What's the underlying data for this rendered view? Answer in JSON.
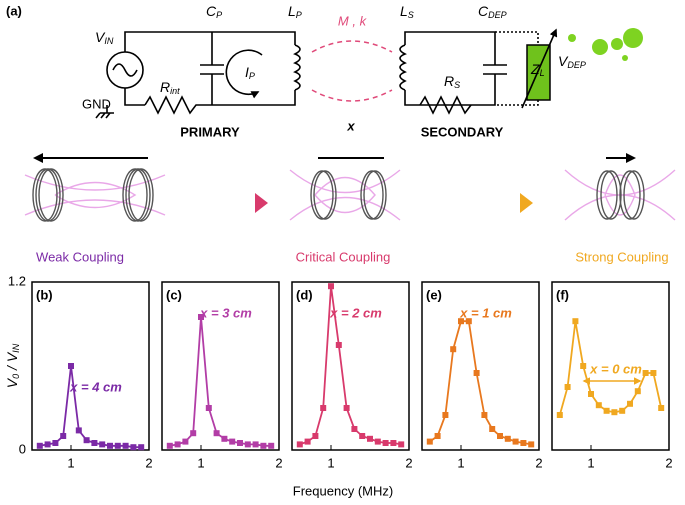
{
  "panel_label": "(a)",
  "circuit": {
    "v_in": [
      "V",
      "IN"
    ],
    "c_p": [
      "C",
      "P"
    ],
    "l_p": [
      "L",
      "P"
    ],
    "m_k": "M , k",
    "l_s": [
      "L",
      "S"
    ],
    "c_dep": [
      "C",
      "DEP"
    ],
    "i_p": [
      "I",
      "P"
    ],
    "r_int": [
      "R",
      "int"
    ],
    "gnd": "GND",
    "r_s": [
      "R",
      "S"
    ],
    "z_l": [
      "Z",
      "L"
    ],
    "v_dep": [
      "V",
      "DEP"
    ],
    "primary": "PRIMARY",
    "x": "x",
    "secondary": "SECONDARY"
  },
  "coupling": [
    "Weak Coupling",
    "Critical Coupling",
    "Strong Coupling"
  ],
  "y_label": [
    "V",
    "0",
    " / V",
    "IN"
  ],
  "x_label": "Frequency (MHz)",
  "chart_data": [
    {
      "type": "line",
      "panel": "(b)",
      "annotation": "x = 4 cm",
      "color": "#7b2aa6",
      "x": [
        0.6,
        0.7,
        0.8,
        0.9,
        1.0,
        1.1,
        1.2,
        1.3,
        1.4,
        1.5,
        1.6,
        1.7,
        1.8,
        1.9
      ],
      "values": [
        0.03,
        0.04,
        0.05,
        0.1,
        0.6,
        0.14,
        0.07,
        0.05,
        0.04,
        0.03,
        0.03,
        0.03,
        0.02,
        0.02
      ],
      "xlim": [
        0.5,
        2
      ],
      "xticks": [
        1,
        2
      ],
      "ylim": [
        0,
        1.2
      ],
      "yticks": [
        0,
        1.2
      ]
    },
    {
      "type": "line",
      "panel": "(c)",
      "annotation": "x = 3 cm",
      "color": "#b23da6",
      "x": [
        0.6,
        0.7,
        0.8,
        0.9,
        1.0,
        1.1,
        1.2,
        1.3,
        1.4,
        1.5,
        1.6,
        1.7,
        1.8,
        1.9
      ],
      "values": [
        0.03,
        0.04,
        0.06,
        0.12,
        0.95,
        0.3,
        0.12,
        0.08,
        0.06,
        0.05,
        0.04,
        0.04,
        0.03,
        0.03
      ],
      "xlim": [
        0.5,
        2
      ],
      "xticks": [
        1,
        2
      ],
      "ylim": [
        0,
        1.2
      ]
    },
    {
      "type": "line",
      "panel": "(d)",
      "annotation": "x = 2 cm",
      "color": "#d83a6c",
      "x": [
        0.6,
        0.7,
        0.8,
        0.9,
        1.0,
        1.1,
        1.2,
        1.3,
        1.4,
        1.5,
        1.6,
        1.7,
        1.8,
        1.9
      ],
      "values": [
        0.04,
        0.06,
        0.1,
        0.3,
        1.17,
        0.75,
        0.3,
        0.15,
        0.1,
        0.08,
        0.06,
        0.05,
        0.05,
        0.04
      ],
      "xlim": [
        0.5,
        2
      ],
      "xticks": [
        1,
        2
      ],
      "ylim": [
        0,
        1.2
      ]
    },
    {
      "type": "line",
      "panel": "(e)",
      "annotation": "x = 1 cm",
      "color": "#e8781e",
      "x": [
        0.6,
        0.7,
        0.8,
        0.9,
        1.0,
        1.1,
        1.2,
        1.3,
        1.4,
        1.5,
        1.6,
        1.7,
        1.8,
        1.9
      ],
      "values": [
        0.06,
        0.1,
        0.25,
        0.72,
        0.92,
        0.92,
        0.55,
        0.25,
        0.15,
        0.1,
        0.08,
        0.06,
        0.05,
        0.04
      ],
      "xlim": [
        0.5,
        2
      ],
      "xticks": [
        1,
        2
      ],
      "ylim": [
        0,
        1.2
      ]
    },
    {
      "type": "line",
      "panel": "(f)",
      "annotation": "x = 0 cm",
      "color": "#f0a820",
      "x": [
        0.6,
        0.7,
        0.8,
        0.9,
        1.0,
        1.1,
        1.2,
        1.3,
        1.4,
        1.5,
        1.6,
        1.7,
        1.8,
        1.9
      ],
      "values": [
        0.25,
        0.45,
        0.92,
        0.6,
        0.4,
        0.32,
        0.28,
        0.27,
        0.28,
        0.33,
        0.42,
        0.55,
        0.55,
        0.3
      ],
      "xlim": [
        0.5,
        2
      ],
      "xticks": [
        1,
        2
      ],
      "ylim": [
        0,
        1.2
      ]
    }
  ]
}
